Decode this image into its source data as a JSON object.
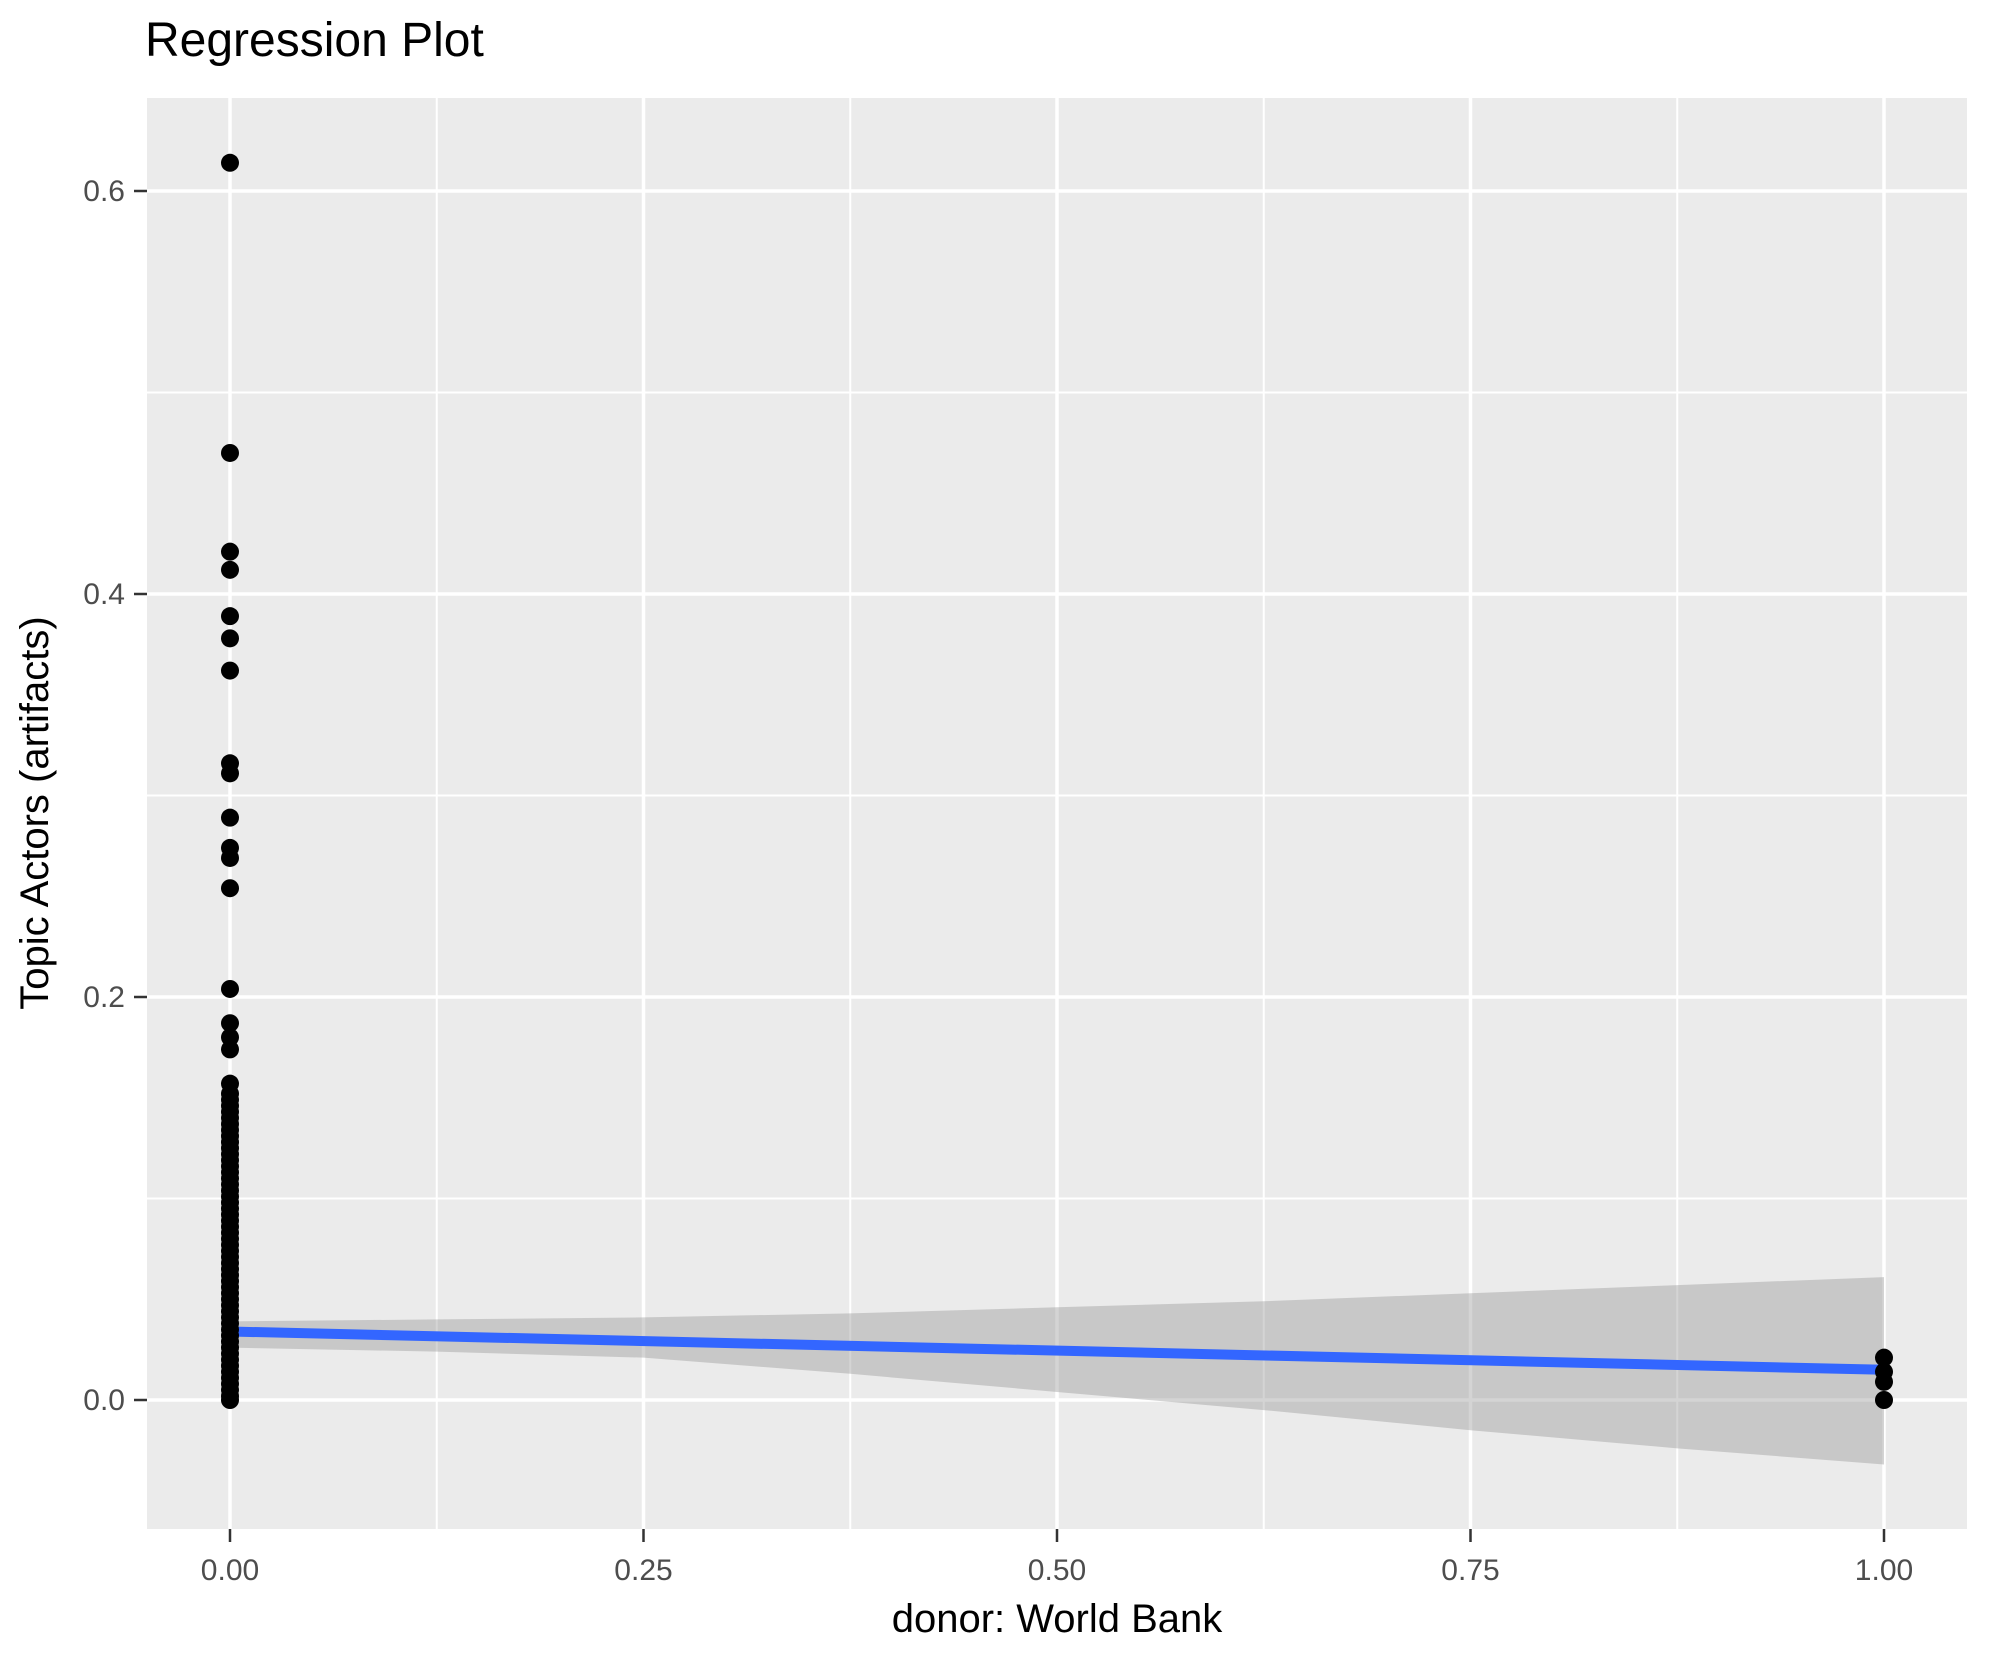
{
  "title": "Regression Plot",
  "chart_data": {
    "type": "scatter",
    "title": "Regression Plot",
    "xlabel": "donor: World Bank",
    "ylabel": "Topic Actors (artifacts)",
    "legend": null,
    "grid": "white major and minor gridlines on gray panel",
    "x_axis": {
      "tick_values": [
        0,
        0.25,
        0.5,
        0.75,
        1.0
      ],
      "tick_labels": [
        "0.00",
        "0.25",
        "0.50",
        "0.75",
        "1.00"
      ],
      "minor_ticks": [
        0.125,
        0.375,
        0.625,
        0.875
      ],
      "range": [
        -0.05,
        1.05
      ]
    },
    "y_axis": {
      "tick_values": [
        0,
        0.2,
        0.4,
        0.6
      ],
      "tick_labels": [
        "0.0",
        "0.2",
        "0.4",
        "0.6"
      ],
      "minor_ticks": [
        0.1,
        0.3,
        0.5
      ],
      "range": [
        -0.064,
        0.646
      ]
    },
    "series": [
      {
        "name": "observations at donor = 0",
        "x": 0,
        "y_values": [
          0.614,
          0.47,
          0.421,
          0.412,
          0.389,
          0.378,
          0.362,
          0.316,
          0.311,
          0.289,
          0.274,
          0.269,
          0.254,
          0.204,
          0.187,
          0.18,
          0.174,
          0.157,
          0.152,
          0.149,
          0.146,
          0.143,
          0.14,
          0.137,
          0.134,
          0.131,
          0.128,
          0.125,
          0.122,
          0.119,
          0.116,
          0.113,
          0.11,
          0.107,
          0.104,
          0.101,
          0.098,
          0.095,
          0.092,
          0.089,
          0.086,
          0.083,
          0.08,
          0.077,
          0.074,
          0.071,
          0.068,
          0.065,
          0.062,
          0.059,
          0.056,
          0.053,
          0.05,
          0.047,
          0.044,
          0.041,
          0.038,
          0.035,
          0.032,
          0.029,
          0.026,
          0.023,
          0.02,
          0.017,
          0.014,
          0.011,
          0.008,
          0.005,
          0.002,
          0.0
        ]
      },
      {
        "name": "observations at donor = 1",
        "x": 1,
        "y_values": [
          0.021,
          0.014,
          0.009,
          0.0
        ]
      }
    ],
    "regression_line": {
      "x": [
        0,
        1
      ],
      "y": [
        0.034,
        0.015
      ]
    },
    "confidence_band": {
      "x": [
        0,
        0.125,
        0.25,
        0.375,
        0.5,
        0.625,
        0.75,
        0.875,
        1.0
      ],
      "upper": [
        0.039,
        0.04,
        0.041,
        0.043,
        0.046,
        0.049,
        0.053,
        0.057,
        0.061
      ],
      "lower": [
        0.026,
        0.024,
        0.021,
        0.013,
        0.004,
        -0.005,
        -0.015,
        -0.024,
        -0.032
      ]
    },
    "style": {
      "point_color": "#000000",
      "line_color": "#3366FF",
      "band_color": "#999999",
      "band_opacity": 0.42,
      "panel_bg": "#EBEBEB",
      "grid_color": "#FFFFFF",
      "tick_mark_color": "#333333",
      "tick_label_color": "#4D4D4D",
      "text_color": "#000000"
    }
  }
}
